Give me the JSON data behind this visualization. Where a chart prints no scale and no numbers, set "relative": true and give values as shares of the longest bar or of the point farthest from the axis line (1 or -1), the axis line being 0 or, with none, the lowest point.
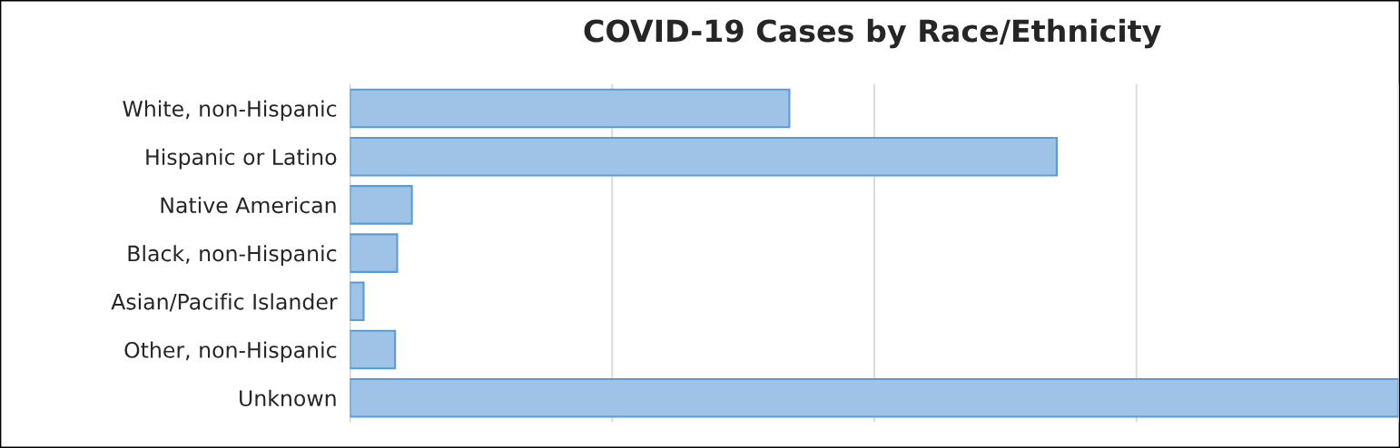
{
  "chart_data": {
    "type": "bar",
    "title": "COVID-19 Cases by Race/Ethnicity",
    "orientation": "horizontal",
    "relative": true,
    "categories": [
      "White, non-Hispanic",
      "Hispanic or Latino",
      "Native American",
      "Black, non-Hispanic",
      "Asian/Pacific Islander",
      "Other, non-Hispanic",
      "Unknown"
    ],
    "values": [
      0.419,
      0.674,
      0.059,
      0.045,
      0.013,
      0.043,
      1
    ],
    "color": "#9fc3e7",
    "grid": "x"
  }
}
